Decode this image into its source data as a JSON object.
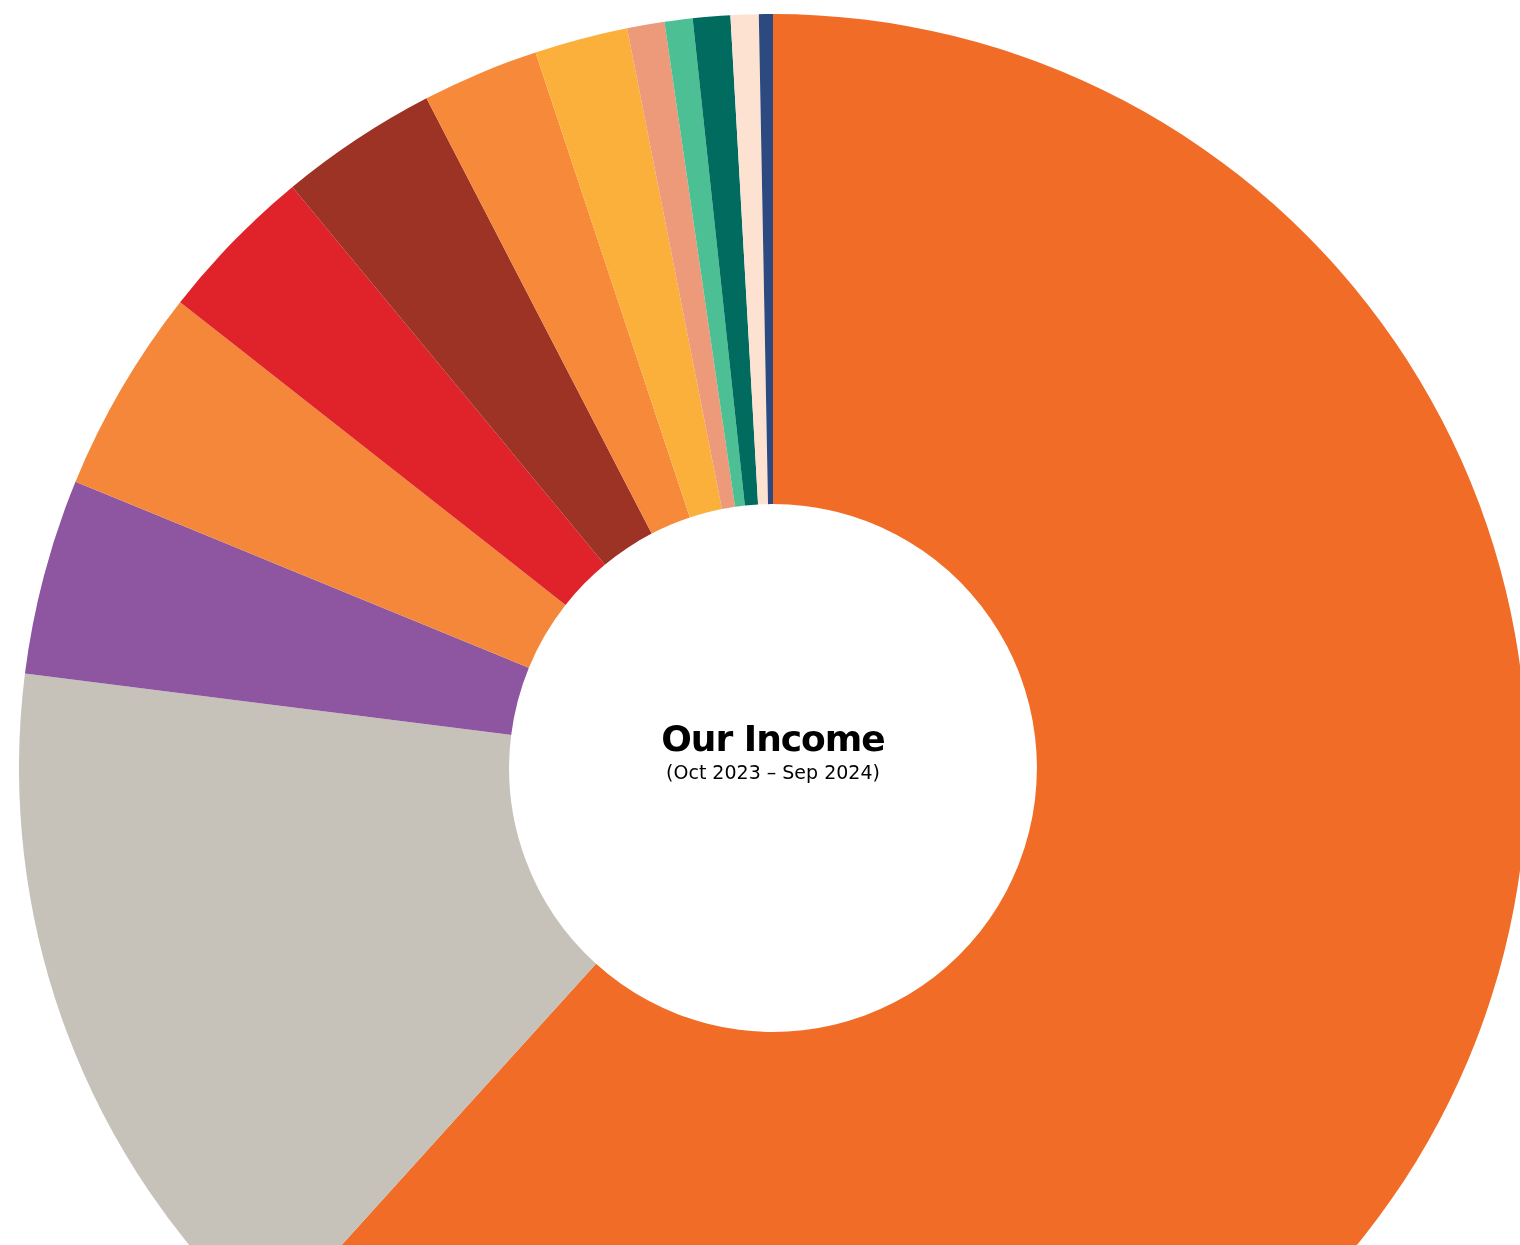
{
  "chart_data": {
    "type": "donut",
    "title": "Our Income",
    "subtitle": "(Oct 2023 – Sep 2024)",
    "categories": [
      null,
      null,
      null,
      null,
      null,
      null,
      null,
      null,
      null,
      null,
      null,
      null,
      null
    ],
    "values": [
      61.7,
      15.3,
      4.2,
      4.4,
      3.4,
      3.4,
      2.5,
      2.0,
      0.8,
      0.6,
      0.8,
      0.6,
      0.3
    ],
    "colors": [
      "#f16d27",
      "#c6c2b9",
      "#8e56a0",
      "#f5873a",
      "#e0232a",
      "#9c3324",
      "#f68a3a",
      "#fbb03b",
      "#ec9a7a",
      "#4dbf95",
      "#006b5e",
      "#fde2d2",
      "#2c4a7f"
    ],
    "legend": false
  }
}
